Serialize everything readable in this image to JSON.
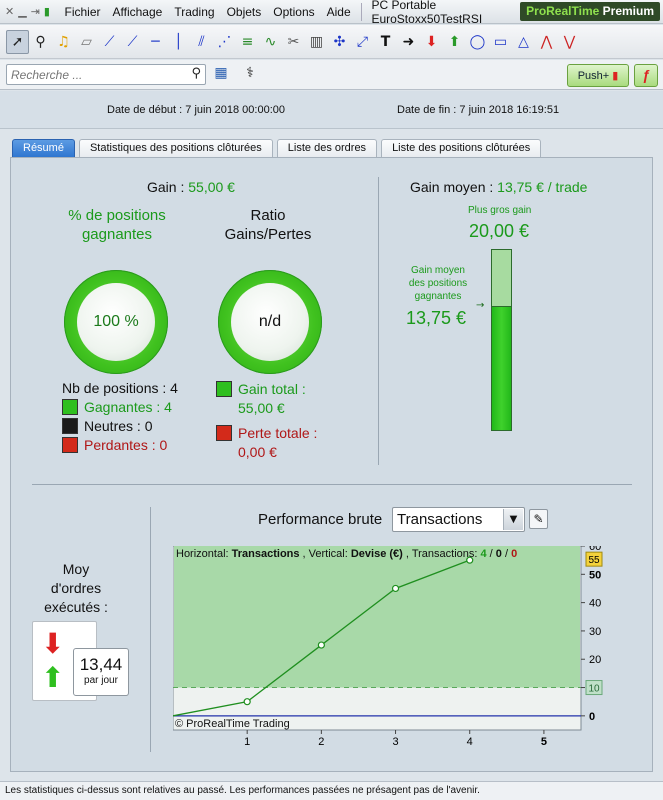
{
  "menubar": {
    "items": [
      {
        "label": "Fichier"
      },
      {
        "label": "Affichage"
      },
      {
        "label": "Trading"
      },
      {
        "label": "Objets"
      },
      {
        "label": "Options"
      },
      {
        "label": "Aide"
      }
    ],
    "document_title": "PC Portable EuroStoxx50TestRSI",
    "brand": "ProRealTime",
    "brand_edition": "Premium"
  },
  "toolbar": {
    "icons": [
      "pointer-icon",
      "zoom-icon",
      "alarm-bell-icon",
      "ruler-icon",
      "segment-icon",
      "trendline-icon",
      "horizontal-line-icon",
      "vertical-line-icon",
      "channel-icon",
      "fan-icon",
      "fibonacci-icon",
      "elliott-icon",
      "tools-icon",
      "trash-icon",
      "cross-arrows-icon",
      "diagonal-arrows-icon",
      "text-icon",
      "arrow-right-icon",
      "arrow-down-icon",
      "arrow-up-icon",
      "ellipse-icon",
      "rectangle-icon",
      "triangle-icon",
      "pattern-icon",
      "zigzag-icon"
    ]
  },
  "search": {
    "placeholder": "Recherche ...",
    "value": ""
  },
  "push": {
    "label": "Push+"
  },
  "dates": {
    "start_label": "Date de début :",
    "start_value": "7 juin 2018 00:00:00",
    "end_label": "Date de fin :",
    "end_value": "7 juin 2018 16:19:51"
  },
  "tabs": [
    {
      "label": "Résumé",
      "active": true
    },
    {
      "label": "Statistiques des positions clôturées",
      "active": false
    },
    {
      "label": "Liste des ordres",
      "active": false
    },
    {
      "label": "Liste des positions clôturées",
      "active": false
    }
  ],
  "summary": {
    "gain_label": "Gain :",
    "gain_value": "55,00 €",
    "pct_label": "% de positions gagnantes",
    "pct_value": "100 %",
    "pct_fraction": 1.0,
    "ratio_label": "Ratio Gains/Pertes",
    "ratio_value": "n/d",
    "nb_positions": "Nb de positions : 4",
    "winners": "Gagnantes : 4",
    "neutral": "Neutres : 0",
    "losers": "Perdantes : 0",
    "gain_total_label": "Gain total :",
    "gain_total_value": "55,00 €",
    "loss_total_label": "Perte totale :",
    "loss_total_value": "0,00 €"
  },
  "average": {
    "title": "Gain moyen :",
    "value": "13,75 € / trade",
    "max_label": "Plus gros gain",
    "max_value": "20,00 €",
    "avg_win_label": "Gain moyen des positions gagnantes",
    "avg_win_value": "13,75 €",
    "max_amount": 20.0,
    "avg_amount": 13.75
  },
  "orders": {
    "label": "Moy d'ordres exécutés :",
    "value": "13,44",
    "unit": "par jour"
  },
  "performance": {
    "label": "Performance brute",
    "select_value": "Transactions"
  },
  "chart_data": {
    "type": "line",
    "header_prefix_h": "Horizontal:",
    "header_h": "Transactions",
    "header_prefix_v": ", Vertical:",
    "header_v": "Devise (€)",
    "header_prefix_t": ", Transactions:",
    "header_t_win": "4",
    "header_t_sep1": " / ",
    "header_t_neutral": "0",
    "header_t_sep2": " / ",
    "header_t_loss": "0",
    "x": [
      0,
      1,
      2,
      3,
      4
    ],
    "y": [
      0,
      5,
      25,
      45,
      55
    ],
    "xlim": [
      0,
      5.5
    ],
    "ylim": [
      -5,
      60
    ],
    "x_ticks": [
      "1",
      "2",
      "3",
      "4",
      "5"
    ],
    "y_ticks": [
      "0",
      "10",
      "20",
      "30",
      "40",
      "50",
      "60"
    ],
    "badge_top": "55",
    "badge_ref": "10",
    "ref_value": 10,
    "watermark": "© ProRealTime Trading",
    "colors": {
      "area": "#a8d9a8",
      "line": "#1f8f1f",
      "zero": "#2233aa"
    }
  },
  "status": {
    "text": "Les statistiques ci-dessus sont relatives au passé. Les performances passées ne présagent pas de l'avenir."
  }
}
